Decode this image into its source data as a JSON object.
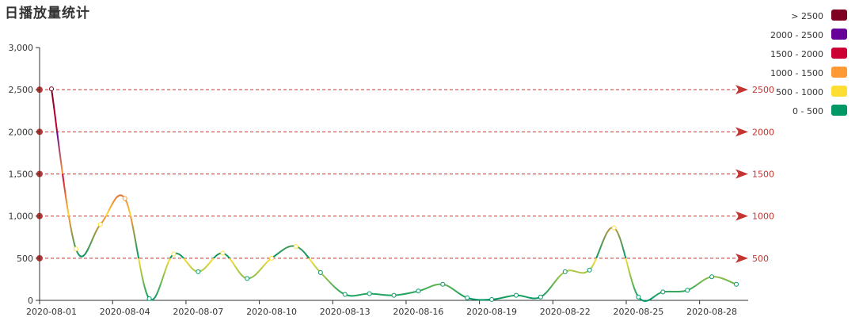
{
  "chart_data": {
    "type": "line",
    "title": "日播放量统计",
    "x": [
      "2020-08-01",
      "2020-08-02",
      "2020-08-03",
      "2020-08-04",
      "2020-08-05",
      "2020-08-06",
      "2020-08-07",
      "2020-08-08",
      "2020-08-09",
      "2020-08-10",
      "2020-08-11",
      "2020-08-12",
      "2020-08-13",
      "2020-08-14",
      "2020-08-15",
      "2020-08-16",
      "2020-08-17",
      "2020-08-18",
      "2020-08-19",
      "2020-08-20",
      "2020-08-21",
      "2020-08-22",
      "2020-08-23",
      "2020-08-24",
      "2020-08-25",
      "2020-08-26",
      "2020-08-27",
      "2020-08-28",
      "2020-08-29"
    ],
    "xticks": [
      "2020-08-01",
      "2020-08-04",
      "2020-08-07",
      "2020-08-10",
      "2020-08-13",
      "2020-08-16",
      "2020-08-19",
      "2020-08-22",
      "2020-08-25",
      "2020-08-28"
    ],
    "series": [
      {
        "values": [
          2510,
          610,
          900,
          1210,
          20,
          550,
          340,
          560,
          260,
          500,
          640,
          330,
          70,
          80,
          60,
          110,
          190,
          30,
          10,
          60,
          40,
          340,
          360,
          860,
          40,
          100,
          120,
          280,
          190
        ]
      }
    ],
    "ylim": [
      0,
      3000
    ],
    "yticks": [
      "0",
      "500",
      "1,000",
      "1,500",
      "2,000",
      "2,500",
      "3,000"
    ],
    "yticks_values": [
      0,
      500,
      1000,
      1500,
      2000,
      2500,
      3000
    ],
    "mark_lines": [
      500,
      1000,
      1500,
      2000,
      2500
    ],
    "mark_line_labels": [
      "500",
      "1000",
      "1500",
      "2000",
      "2500"
    ],
    "mark_line_color": "#c23531",
    "visual_map": {
      "pieces": [
        {
          "label": "> 2500",
          "min": 2500,
          "color": "#7e0023"
        },
        {
          "label": "2000 - 2500",
          "min": 2000,
          "max": 2500,
          "color": "#660099"
        },
        {
          "label": "1500 - 2000",
          "min": 1500,
          "max": 2000,
          "color": "#cc0033"
        },
        {
          "label": "1000 - 1500",
          "min": 1000,
          "max": 1500,
          "color": "#ff9933"
        },
        {
          "label": "500 - 1000",
          "min": 500,
          "max": 1000,
          "color": "#ffde33"
        },
        {
          "label": "0 - 500",
          "min": 0,
          "max": 500,
          "color": "#096"
        }
      ]
    },
    "grid": false,
    "legend_position": "top-right"
  }
}
